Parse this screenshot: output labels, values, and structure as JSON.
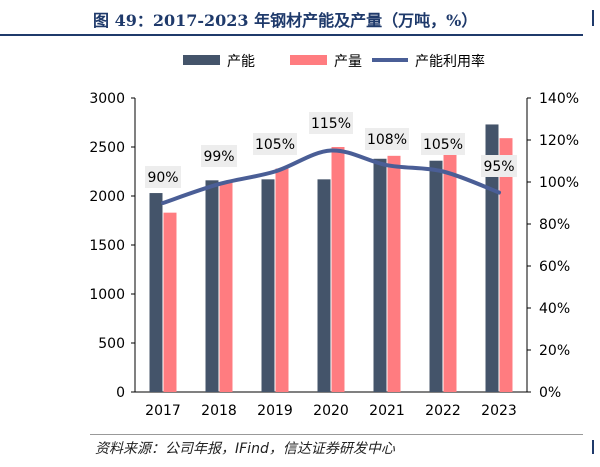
{
  "figure": {
    "title": "图 49：2017-2023 年钢材产能及产量（万吨，%）",
    "source": "资料来源：公司年报，IFind，信达证券研发中心"
  },
  "colors": {
    "capacity": "#44546a",
    "output": "#ff7c80",
    "rate": "#4a5e96",
    "title": "#1f3a6b"
  },
  "chart_data": {
    "type": "bar",
    "categories": [
      "2017",
      "2018",
      "2019",
      "2020",
      "2021",
      "2022",
      "2023"
    ],
    "series": [
      {
        "name": "产能",
        "type": "bar",
        "axis": "left",
        "values": [
          2030,
          2160,
          2170,
          2170,
          2380,
          2360,
          2730
        ]
      },
      {
        "name": "产量",
        "type": "bar",
        "axis": "left",
        "values": [
          1830,
          2140,
          2280,
          2500,
          2410,
          2640,
          2590
        ]
      },
      {
        "name": "产能利用率",
        "type": "line",
        "axis": "right",
        "values": [
          90,
          99,
          105,
          115,
          108,
          105,
          95
        ]
      }
    ],
    "data_labels": [
      "90%",
      "99%",
      "105%",
      "115%",
      "108%",
      "105%",
      "95%"
    ],
    "y_left": {
      "lim": [
        0,
        3000
      ],
      "ticks": [
        "0",
        "500",
        "1000",
        "1500",
        "2000",
        "2500",
        "3000"
      ]
    },
    "y_right": {
      "lim": [
        0,
        140
      ],
      "ticks": [
        "0%",
        "20%",
        "40%",
        "60%",
        "80%",
        "100%",
        "120%",
        "140%"
      ]
    },
    "grid": false,
    "legend": "top"
  }
}
